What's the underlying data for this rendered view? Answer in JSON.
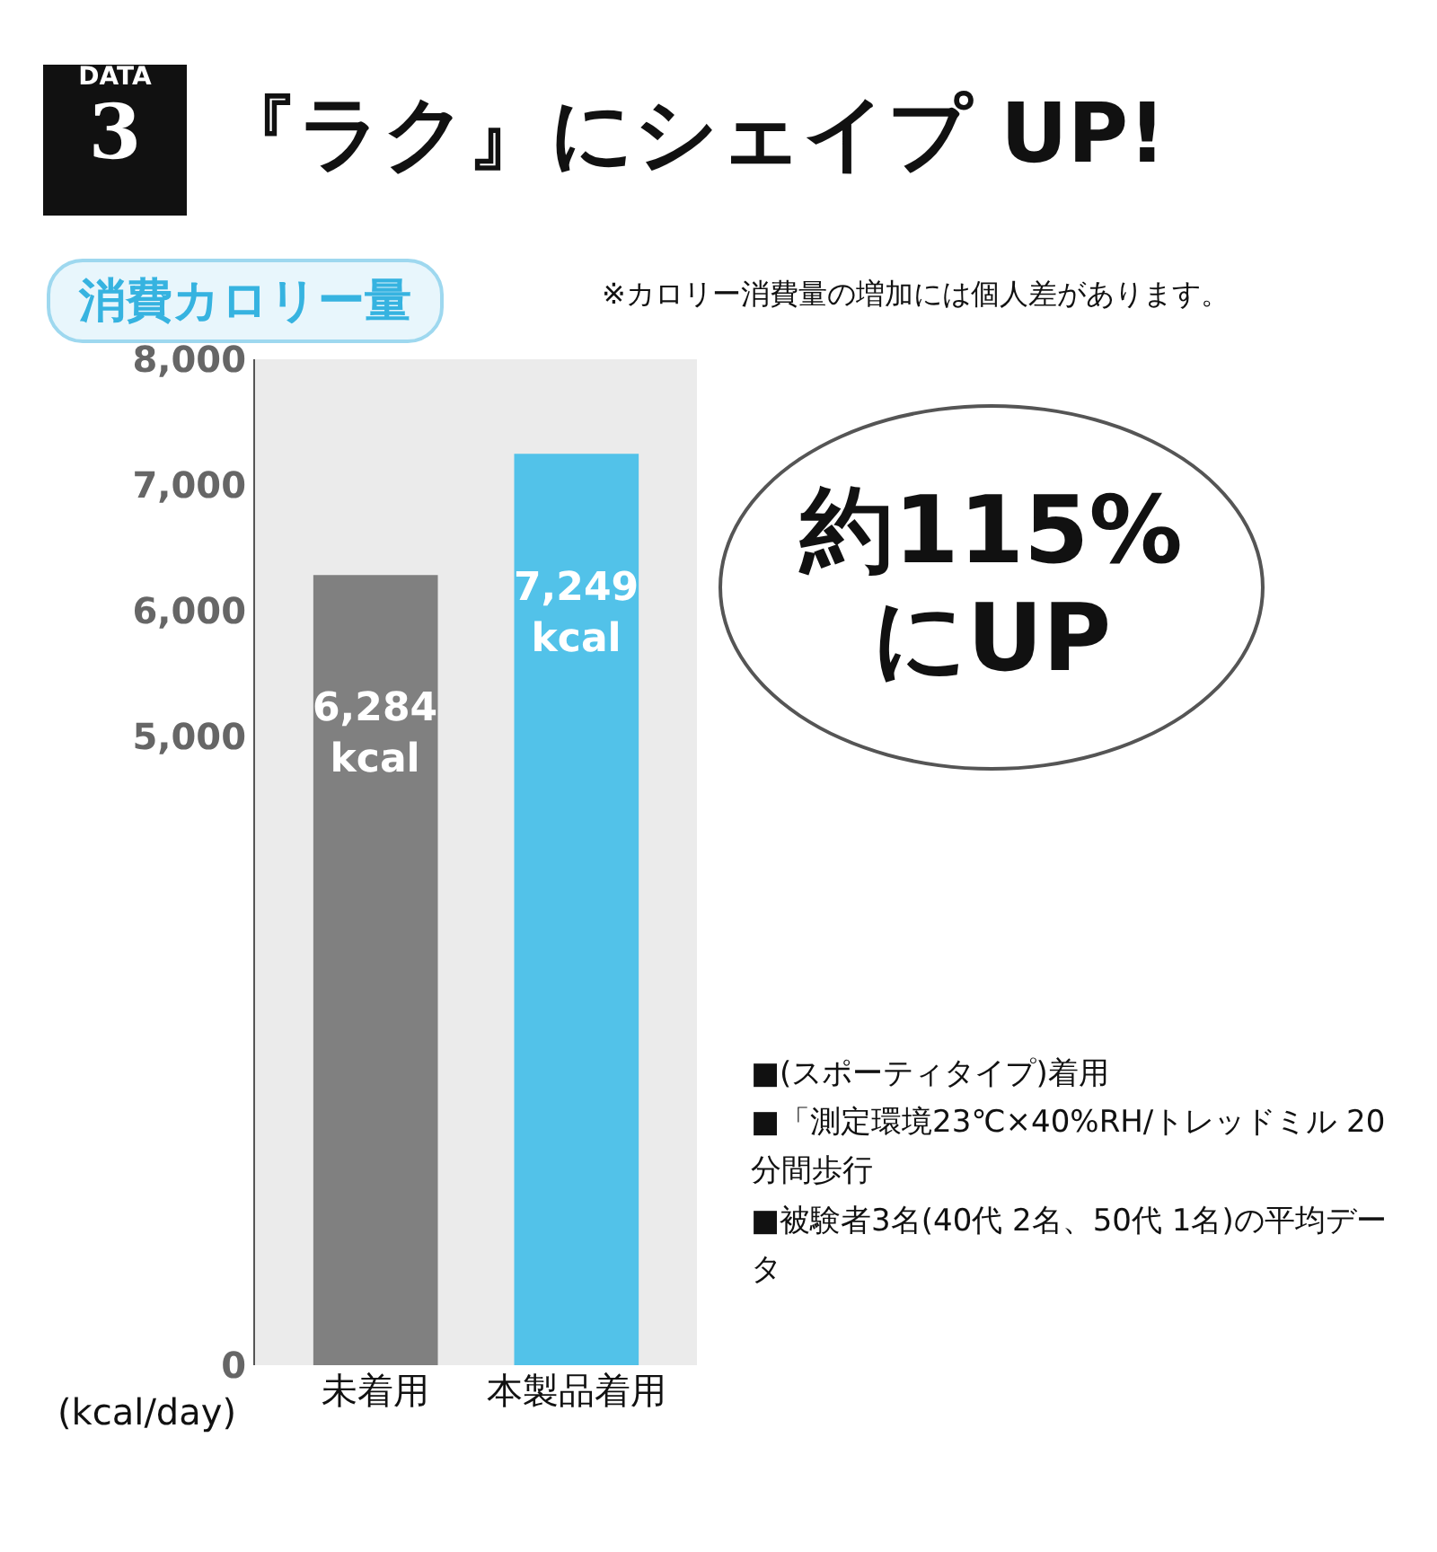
{
  "chart_data": {
    "type": "bar",
    "title": "『ラク』にシェイプ UP!",
    "subtitle": "消費カロリー量",
    "ylabel": "(kcal/day)",
    "categories": [
      "未着用",
      "本製品着用"
    ],
    "values": [
      6284,
      7249
    ],
    "colors": [
      "#808080",
      "#52c2e9"
    ],
    "value_labels": [
      "6,284\nkcal",
      "7,249\nkcal"
    ],
    "ylim": [
      0,
      8000
    ],
    "yticks": [
      0,
      {
        "value": 5000,
        "label": "5,000"
      },
      {
        "value": 6000,
        "label": "6,000"
      },
      {
        "value": 7000,
        "label": "7,000"
      },
      {
        "value": 8000,
        "label": "8,000"
      }
    ],
    "grid": false,
    "annotations": [
      "DATA\n3",
      "※カロリー消費量の増加には個人差があります。",
      "約115%にUP",
      "■(スポーティタイプ)着用",
      "■「測定環境23℃×40%RH/トレッドミル 20分間歩行",
      "■被験者3名(40代 2名、50代 1名)の平均データ"
    ]
  }
}
